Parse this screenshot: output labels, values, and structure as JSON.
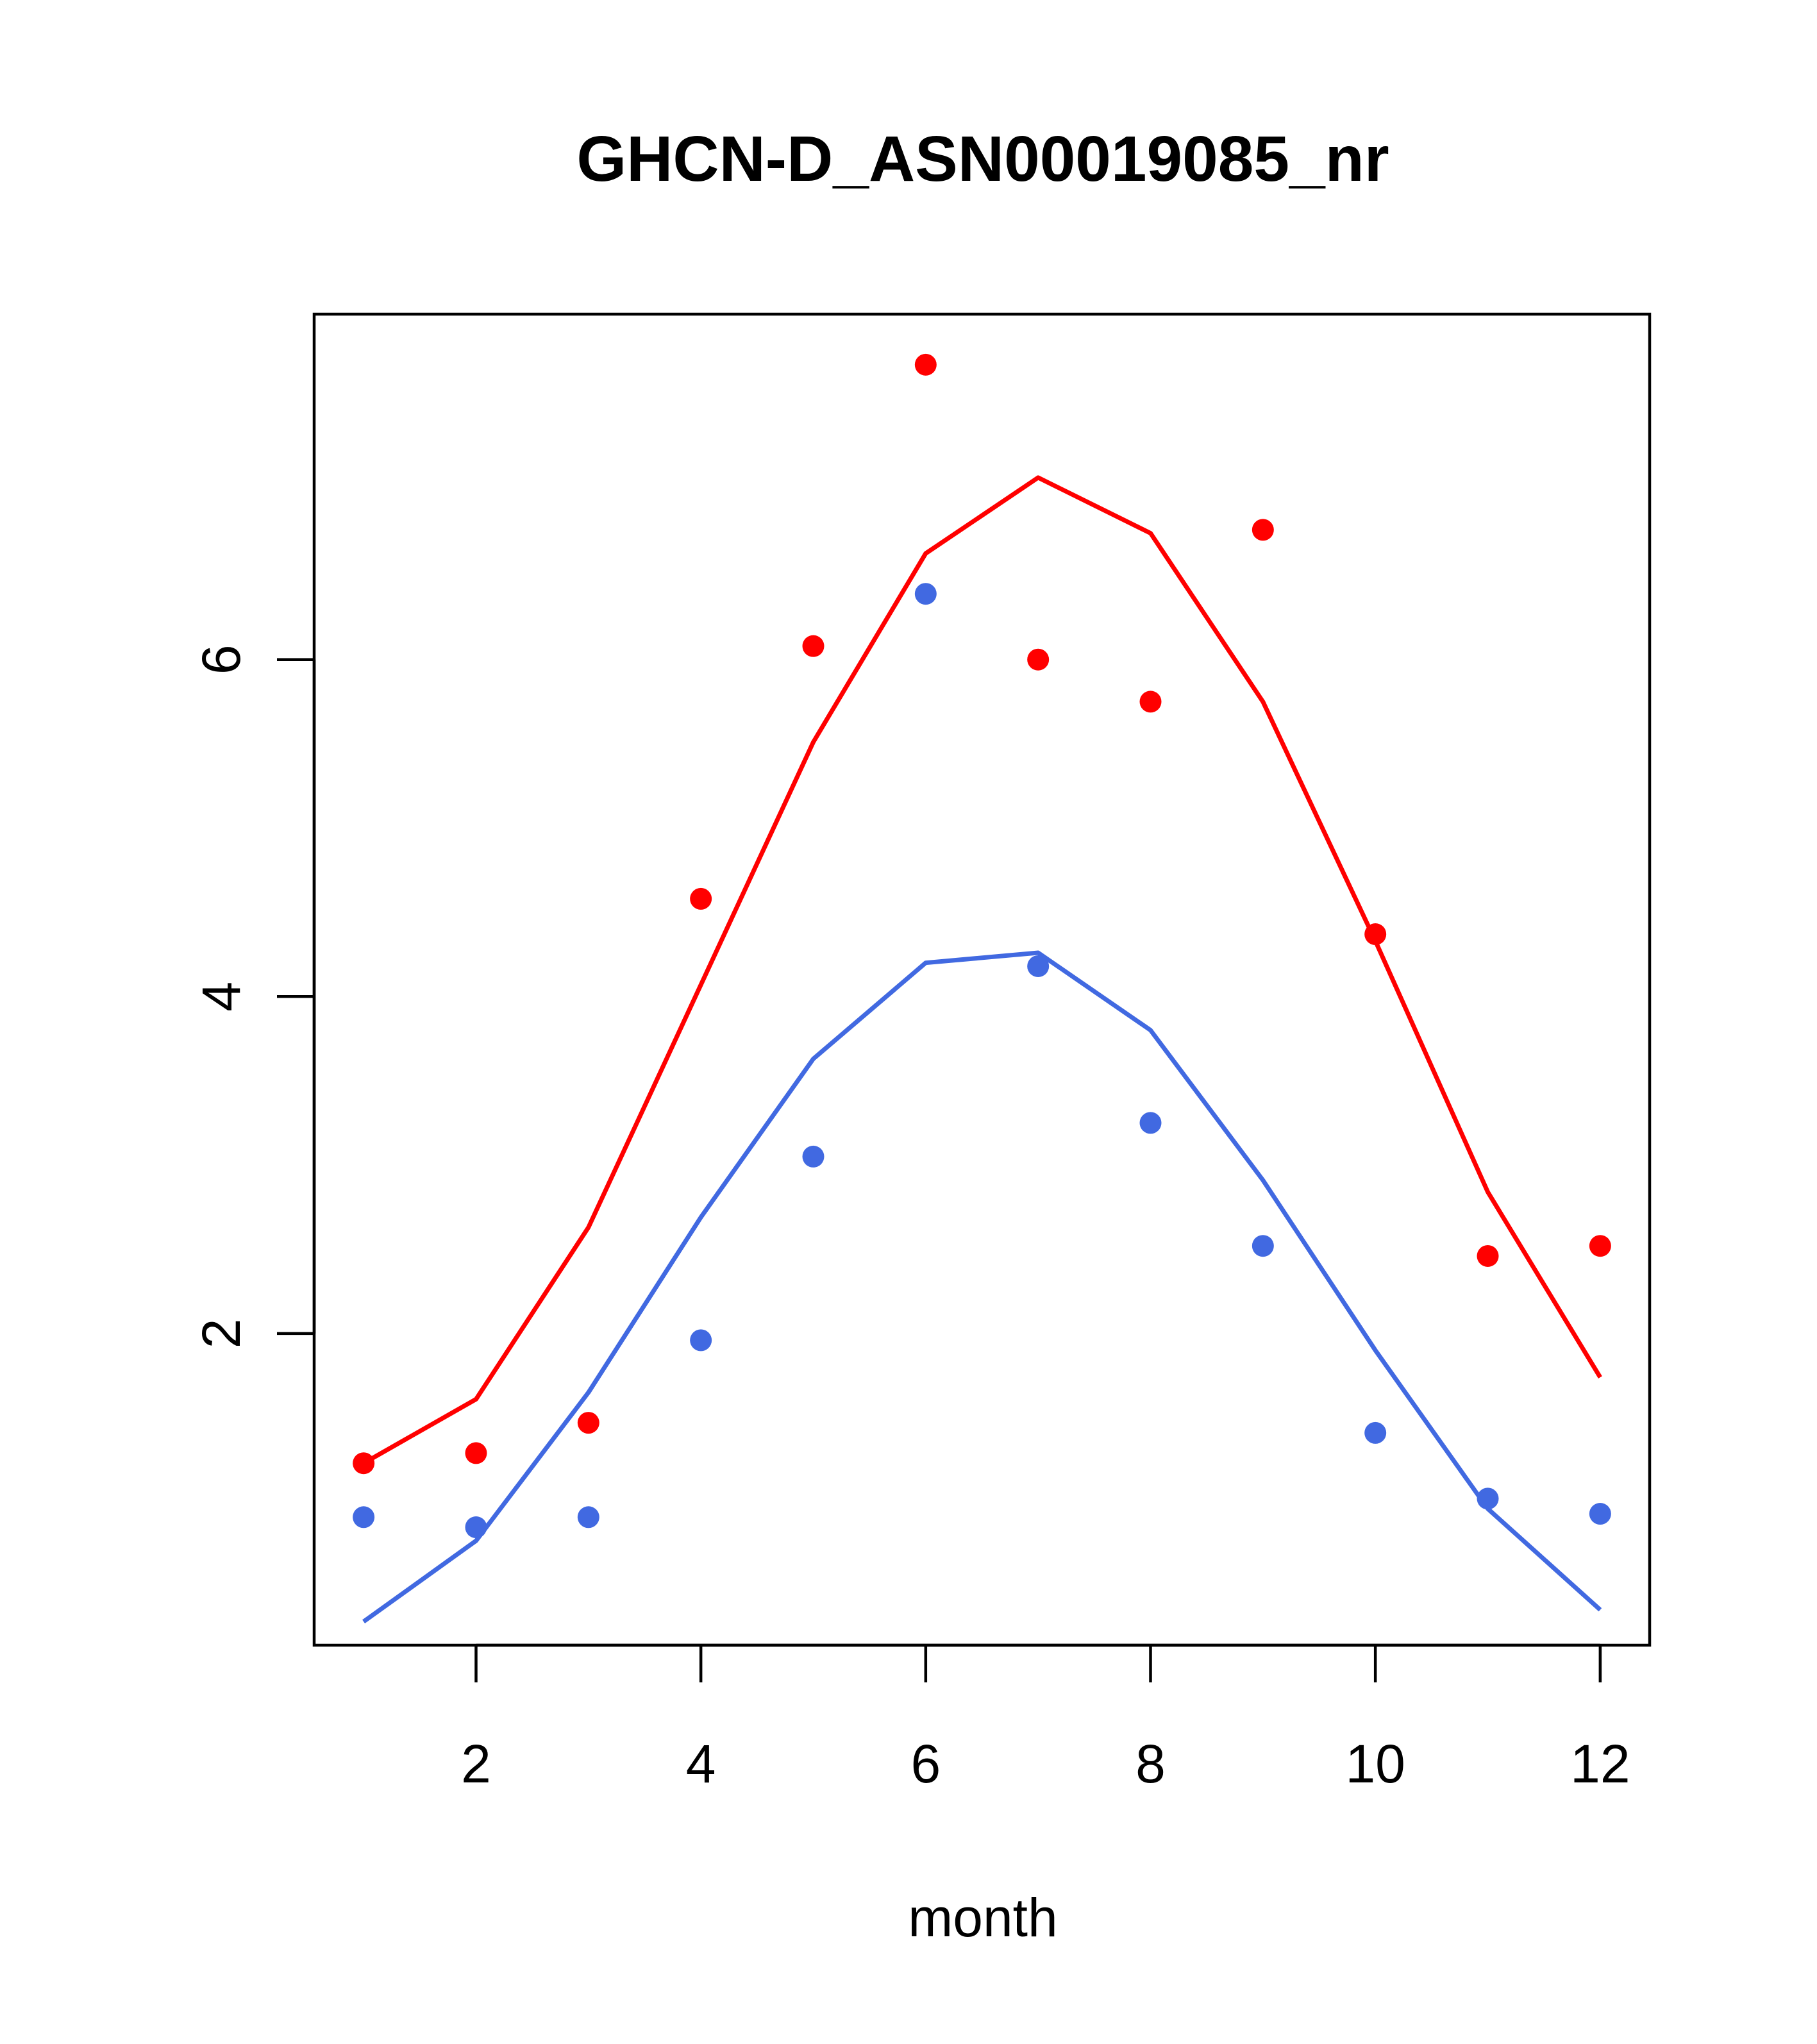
{
  "chart_data": {
    "type": "line",
    "title": "GHCN-D_ASN00019085_nr",
    "xlabel": "month",
    "ylabel": "",
    "xlim": [
      0.56,
      12.44
    ],
    "ylim": [
      0.15,
      8.05
    ],
    "x_ticks": [
      2,
      4,
      6,
      8,
      10,
      12
    ],
    "y_ticks": [
      2,
      4,
      6
    ],
    "grid": false,
    "legend": "none",
    "series": [
      {
        "color": "#ff0000",
        "x": [
          1,
          2,
          3,
          4,
          5,
          6,
          7,
          8,
          9,
          10,
          11,
          12
        ],
        "points": [
          1.23,
          1.29,
          1.47,
          4.58,
          6.08,
          7.75,
          6.0,
          5.75,
          6.77,
          4.37,
          2.46,
          2.52
        ],
        "line": [
          1.23,
          1.61,
          2.63,
          4.07,
          5.51,
          6.63,
          7.08,
          6.75,
          5.75,
          4.33,
          2.84,
          1.74
        ]
      },
      {
        "color": "#4169e1",
        "x": [
          1,
          2,
          3,
          4,
          5,
          6,
          7,
          8,
          9,
          10,
          11,
          12
        ],
        "points": [
          0.91,
          0.85,
          0.91,
          1.96,
          3.05,
          6.39,
          4.18,
          3.25,
          2.52,
          1.41,
          1.02,
          0.93
        ],
        "line": [
          0.29,
          0.77,
          1.65,
          2.69,
          3.63,
          4.2,
          4.26,
          3.8,
          2.91,
          1.9,
          0.96,
          0.36
        ]
      }
    ]
  }
}
